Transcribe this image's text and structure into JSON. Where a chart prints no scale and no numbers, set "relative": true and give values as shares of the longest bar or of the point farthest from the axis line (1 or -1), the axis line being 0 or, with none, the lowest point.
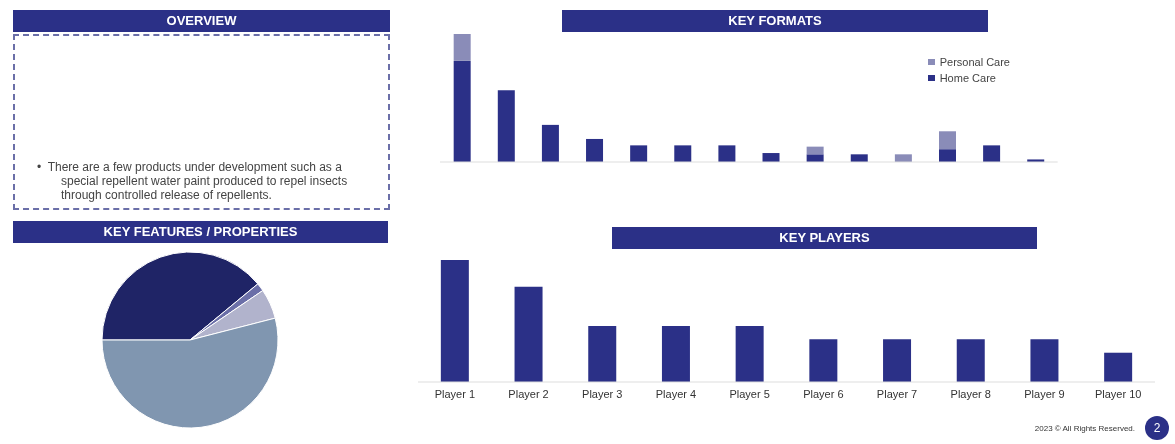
{
  "chart_data": [
    {
      "type": "other",
      "title": "OVERVIEW",
      "annotations": [
        "•\tThere are a few products under development such as a special repellent water paint produced to repel insects through controlled release of repellents."
      ]
    },
    {
      "type": "bar",
      "title": "KEY FORMATS",
      "relative": true,
      "stacked": true,
      "legend": "top right",
      "categories": [
        null,
        null,
        null,
        null,
        null,
        null,
        null,
        null,
        null,
        null,
        null,
        null,
        null,
        null
      ],
      "series": [
        {
          "name": "Home Care",
          "color": "#2b3087",
          "values": [
            0.79,
            0.56,
            0.29,
            0.18,
            0.13,
            0.13,
            0.13,
            0.07,
            0.06,
            0.06,
            0,
            0.1,
            0.13,
            0.02
          ]
        },
        {
          "name": "Personal Care",
          "color": "#8a8cb8",
          "values": [
            0.21,
            0,
            0,
            0,
            0,
            0,
            0,
            0,
            0.06,
            0,
            0.06,
            0.14,
            0,
            0
          ]
        }
      ]
    },
    {
      "type": "pie",
      "title": "KEY FEATURES / PROPERTIES",
      "categories": [
        null,
        null,
        null,
        null
      ],
      "values": [
        39,
        1.5,
        5.5,
        54
      ],
      "colors": [
        "#1f2466",
        "#6b6fa8",
        "#b1b3cc",
        "#8096b0"
      ]
    },
    {
      "type": "bar",
      "title": "KEY PLAYERS",
      "relative": true,
      "categories": [
        "Player 1",
        "Player 2",
        "Player 3",
        "Player 4",
        "Player 5",
        "Player 6",
        "Player 7",
        "Player 8",
        "Player 9",
        "Player 10"
      ],
      "values": [
        1,
        0.78,
        0.46,
        0.46,
        0.46,
        0.35,
        0.35,
        0.35,
        0.35,
        0.24
      ],
      "color": "#2b3087",
      "annotations": [
        "2023 © All Rights Reserved.",
        "2"
      ]
    }
  ]
}
